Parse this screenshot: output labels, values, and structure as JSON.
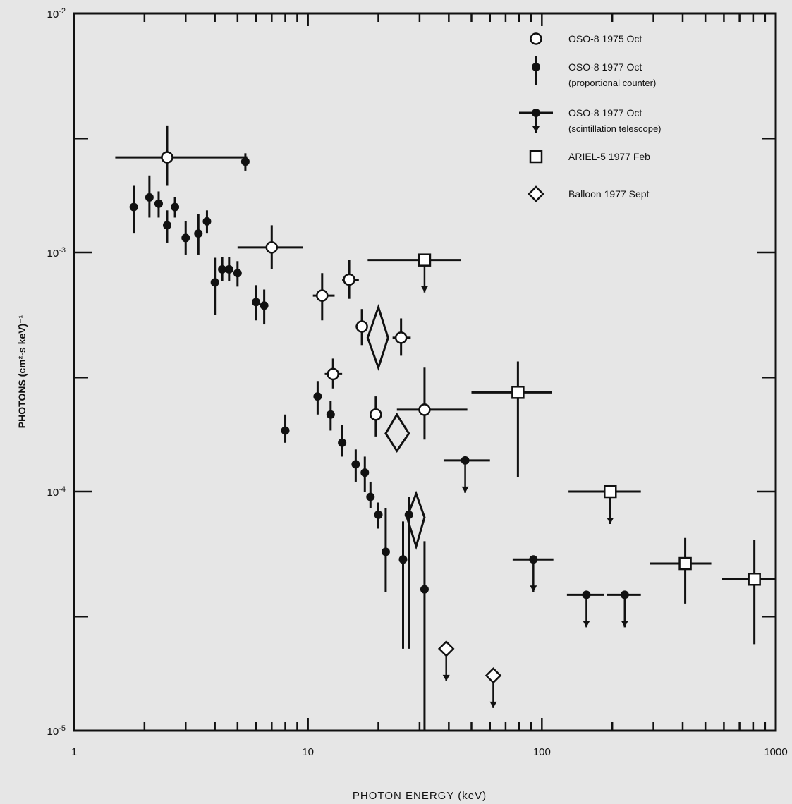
{
  "chart_data": {
    "type": "scatter",
    "title": "",
    "xlabel": "PHOTON ENERGY (keV)",
    "ylabel": "PHOTONS (cm²-s keV)⁻¹",
    "xscale": "log",
    "yscale": "log",
    "xlim": [
      1,
      1000
    ],
    "ylim": [
      1e-05,
      0.01
    ],
    "grid": false,
    "legend_position": "top-right",
    "x_tick_labels": [
      "1",
      "10",
      "100",
      "1000"
    ],
    "y_tick_labels": [
      {
        "base": "10",
        "exp": "-2"
      },
      {
        "base": "10",
        "exp": "-3"
      },
      {
        "base": "10",
        "exp": "-4"
      },
      {
        "base": "10",
        "exp": "-5"
      }
    ],
    "series": [
      {
        "name": "OSO-8 1975 Oct",
        "marker": "open-circle",
        "points": [
          {
            "x": 2.5,
            "y": 0.0025,
            "xerr": [
              1.5,
              5.5
            ],
            "yerr": [
              0.0019,
              0.0034
            ]
          },
          {
            "x": 7.0,
            "y": 0.00105,
            "xerr": [
              5.0,
              9.5
            ],
            "yerr": [
              0.00085,
              0.0013
            ]
          },
          {
            "x": 11.5,
            "y": 0.00066,
            "xerr": [
              10.5,
              13.0
            ],
            "yerr": [
              0.00052,
              0.00082
            ]
          },
          {
            "x": 15.0,
            "y": 0.00077,
            "xerr": [
              14.0,
              16.5
            ],
            "yerr": [
              0.00064,
              0.00093
            ]
          },
          {
            "x": 12.8,
            "y": 0.00031,
            "xerr": [
              11.8,
              14.0
            ],
            "yerr": [
              0.00027,
              0.00036
            ]
          },
          {
            "x": 17.0,
            "y": 0.00049,
            "xerr": [
              16.0,
              18.0
            ],
            "yerr": [
              0.00041,
              0.00058
            ]
          },
          {
            "x": 25.0,
            "y": 0.00044,
            "xerr": [
              23.0,
              27.5
            ],
            "yerr": [
              0.00037,
              0.00053
            ]
          },
          {
            "x": 19.5,
            "y": 0.00021,
            "xerr": [
              18.5,
              20.5
            ],
            "yerr": [
              0.00017,
              0.00025
            ]
          },
          {
            "x": 31.5,
            "y": 0.00022,
            "xerr": [
              24.0,
              48.0
            ],
            "yerr": [
              0.000165,
              0.00033
            ]
          }
        ]
      },
      {
        "name": "OSO-8 1977 Oct",
        "label_note": "(proportional counter)",
        "marker": "filled-circle",
        "points": [
          {
            "x": 1.8,
            "y": 0.00155,
            "yerr": [
              0.0012,
              0.0019
            ]
          },
          {
            "x": 2.1,
            "y": 0.0017,
            "yerr": [
              0.0014,
              0.0021
            ]
          },
          {
            "x": 2.3,
            "y": 0.0016,
            "yerr": [
              0.0014,
              0.0018
            ]
          },
          {
            "x": 2.5,
            "y": 0.0013,
            "yerr": [
              0.0011,
              0.0015
            ]
          },
          {
            "x": 2.7,
            "y": 0.00155,
            "yerr": [
              0.0014,
              0.0017
            ]
          },
          {
            "x": 3.0,
            "y": 0.00115,
            "yerr": [
              0.00098,
              0.00135
            ]
          },
          {
            "x": 3.4,
            "y": 0.0012,
            "yerr": [
              0.00098,
              0.00145
            ]
          },
          {
            "x": 3.7,
            "y": 0.00135,
            "yerr": [
              0.0012,
              0.0015
            ]
          },
          {
            "x": 4.0,
            "y": 0.00075,
            "yerr": [
              0.00055,
              0.00095
            ]
          },
          {
            "x": 4.3,
            "y": 0.00085,
            "yerr": [
              0.00076,
              0.00096
            ]
          },
          {
            "x": 4.6,
            "y": 0.00085,
            "yerr": [
              0.00076,
              0.00096
            ]
          },
          {
            "x": 5.0,
            "y": 0.00082,
            "yerr": [
              0.00072,
              0.00092
            ]
          },
          {
            "x": 5.4,
            "y": 0.0024,
            "yerr": [
              0.0022,
              0.0026
            ]
          },
          {
            "x": 6.0,
            "y": 0.00062,
            "yerr": [
              0.00052,
              0.00073
            ]
          },
          {
            "x": 6.5,
            "y": 0.0006,
            "yerr": [
              0.0005,
              0.0007
            ]
          },
          {
            "x": 8.0,
            "y": 0.00018,
            "yerr": [
              0.00016,
              0.00021
            ]
          },
          {
            "x": 11.0,
            "y": 0.00025,
            "yerr": [
              0.00021,
              0.00029
            ]
          },
          {
            "x": 12.5,
            "y": 0.00021,
            "yerr": [
              0.00018,
              0.00024
            ]
          },
          {
            "x": 14.0,
            "y": 0.00016,
            "yerr": [
              0.00014,
              0.00019
            ]
          },
          {
            "x": 16.0,
            "y": 0.00013,
            "yerr": [
              0.00011,
              0.00015
            ]
          },
          {
            "x": 17.5,
            "y": 0.00012,
            "yerr": [
              0.0001,
              0.00014
            ]
          },
          {
            "x": 18.5,
            "y": 9.5e-05,
            "yerr": [
              8.5e-05,
              0.00011
            ]
          },
          {
            "x": 20.0,
            "y": 8e-05,
            "yerr": [
              7e-05,
              9e-05
            ]
          },
          {
            "x": 21.5,
            "y": 5.6e-05,
            "yerr": [
              3.8e-05,
              8.5e-05
            ]
          },
          {
            "x": 25.5,
            "y": 5.2e-05,
            "yerr": [
              2.2e-05,
              7.5e-05
            ]
          },
          {
            "x": 27.0,
            "y": 8e-05,
            "yerr": [
              2.2e-05,
              9.5e-05
            ]
          },
          {
            "x": 31.5,
            "y": 3.9e-05,
            "yerr": [
              1e-05,
              6.2e-05
            ]
          }
        ]
      },
      {
        "name": "OSO-8 1977 Oct",
        "label_note": "(scintillation telescope)",
        "marker": "filled-circle-upper-limit",
        "points": [
          {
            "x": 47.0,
            "y": 0.000135,
            "xerr": [
              38.0,
              60.0
            ],
            "upper_limit": true
          },
          {
            "x": 92.0,
            "y": 5.2e-05,
            "xerr": [
              75.0,
              112.0
            ],
            "upper_limit": true
          },
          {
            "x": 155.0,
            "y": 3.7e-05,
            "xerr": [
              128.0,
              185.0
            ],
            "upper_limit": true
          },
          {
            "x": 226.0,
            "y": 3.7e-05,
            "xerr": [
              190.0,
              265.0
            ],
            "upper_limit": true
          }
        ]
      },
      {
        "name": "ARIEL-5 1977 Feb",
        "marker": "open-square",
        "points": [
          {
            "x": 31.5,
            "y": 0.00093,
            "xerr": [
              18.0,
              45.0
            ],
            "upper_limit": true
          },
          {
            "x": 79.0,
            "y": 0.00026,
            "xerr": [
              50.0,
              110.0
            ],
            "yerr": [
              0.000115,
              0.00035
            ]
          },
          {
            "x": 196.0,
            "y": 0.0001,
            "xerr": [
              130.0,
              265.0
            ],
            "upper_limit": true
          },
          {
            "x": 410.0,
            "y": 5e-05,
            "xerr": [
              290.0,
              530.0
            ],
            "yerr": [
              3.4e-05,
              6.4e-05
            ]
          },
          {
            "x": 810.0,
            "y": 4.3e-05,
            "xerr": [
              590.0,
              1000.0
            ],
            "yerr": [
              2.3e-05,
              6.3e-05
            ]
          }
        ]
      },
      {
        "name": "Balloon 1977 Sept",
        "marker": "open-diamond",
        "points": [
          {
            "x": 20.0,
            "y": 0.00044,
            "diamond": {
              "xlo": 18.0,
              "xhi": 22.0,
              "ylo": 0.00033,
              "yhi": 0.00059
            }
          },
          {
            "x": 24.0,
            "y": 0.000175,
            "diamond": {
              "xlo": 21.5,
              "xhi": 27.0,
              "ylo": 0.000148,
              "yhi": 0.00021
            }
          },
          {
            "x": 29.0,
            "y": 7.8e-05,
            "diamond": {
              "xlo": 26.5,
              "xhi": 31.5,
              "ylo": 5.9e-05,
              "yhi": 9.8e-05
            }
          },
          {
            "x": 39.0,
            "y": 2.2e-05,
            "upper_limit": true
          },
          {
            "x": 62.0,
            "y": 1.7e-05,
            "upper_limit": true
          }
        ]
      }
    ]
  }
}
